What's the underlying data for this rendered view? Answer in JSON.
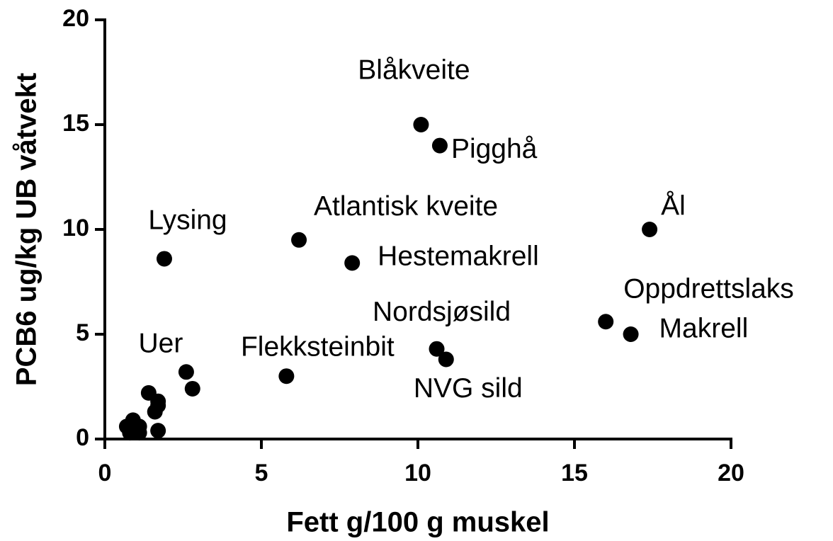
{
  "chart_data": {
    "type": "scatter",
    "xlabel": "Fett g/100 g muskel",
    "ylabel": "PCB6 ug/kg UB våtvekt",
    "x": [
      10.1,
      10.7,
      17.4,
      1.9,
      6.2,
      7.9,
      16.0,
      16.8,
      10.6,
      10.9,
      5.8,
      2.6,
      2.8,
      1.4,
      1.7,
      1.7,
      1.6,
      1.7,
      0.9,
      1.1,
      0.8,
      1.1,
      0.7
    ],
    "values": [
      15.0,
      14.0,
      10.0,
      8.6,
      9.5,
      8.4,
      5.6,
      5.0,
      4.3,
      3.8,
      3.0,
      3.2,
      2.4,
      2.2,
      1.8,
      1.6,
      1.3,
      0.4,
      0.9,
      0.6,
      0.3,
      0.3,
      0.6
    ],
    "labels": [
      "Blåkveite",
      "Pigghå",
      "Ål",
      "Lysing",
      "Atlantisk kveite",
      "Hestemakrell",
      "Oppdrettslaks",
      "Makrell",
      "Nordsjøsild",
      "NVG sild",
      "Flekksteinbit",
      "Uer",
      null,
      null,
      null,
      null,
      null,
      null,
      null,
      null,
      null,
      null,
      null
    ],
    "color": "#000000",
    "xlim": [
      0,
      20
    ],
    "xticks": [
      0,
      5,
      10,
      15,
      20
    ],
    "ylim": [
      0,
      20
    ],
    "yticks": [
      0,
      5,
      10,
      15,
      20
    ]
  }
}
